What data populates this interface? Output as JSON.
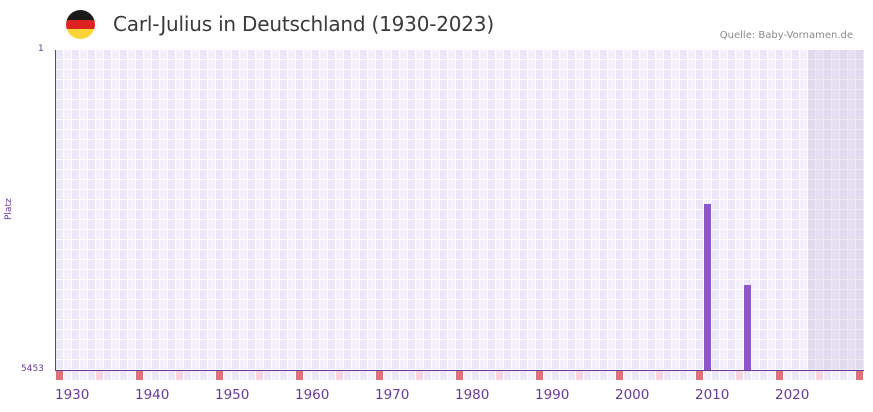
{
  "header": {
    "title": "Carl-Julius in Deutschland (1930-2023)",
    "source": "Quelle: Baby-Vornamen.de",
    "flag_colors": [
      "#1a1a1a",
      "#dd2222",
      "#fcd436"
    ]
  },
  "colors": {
    "bar": "#8a58c8",
    "axis": "#6a3a9a",
    "decade_marker": "#e07078",
    "half_decade_marker": "#f5d5df",
    "cell_light": "#f3f0fc",
    "cell_dark": "#ebe6f8",
    "future_shade": "#e2ddec"
  },
  "chart_data": {
    "type": "bar",
    "title": "Carl-Julius in Deutschland (1930-2023)",
    "xlabel": "",
    "ylabel": "Platz",
    "x_range": [
      1930,
      2030
    ],
    "data_range": [
      1930,
      2023
    ],
    "y_axis_inverted": true,
    "ylim": [
      1,
      5453
    ],
    "y_ticks": [
      "1",
      "5453"
    ],
    "x_ticks": [
      "1930",
      "1940",
      "1950",
      "1960",
      "1970",
      "1980",
      "1990",
      "2000",
      "2010",
      "2020"
    ],
    "categories": [
      "2011",
      "2016"
    ],
    "values": [
      2620,
      4000
    ],
    "grid": true,
    "legend": null,
    "annotations": [
      "Quelle: Baby-Vornamen.de"
    ]
  }
}
